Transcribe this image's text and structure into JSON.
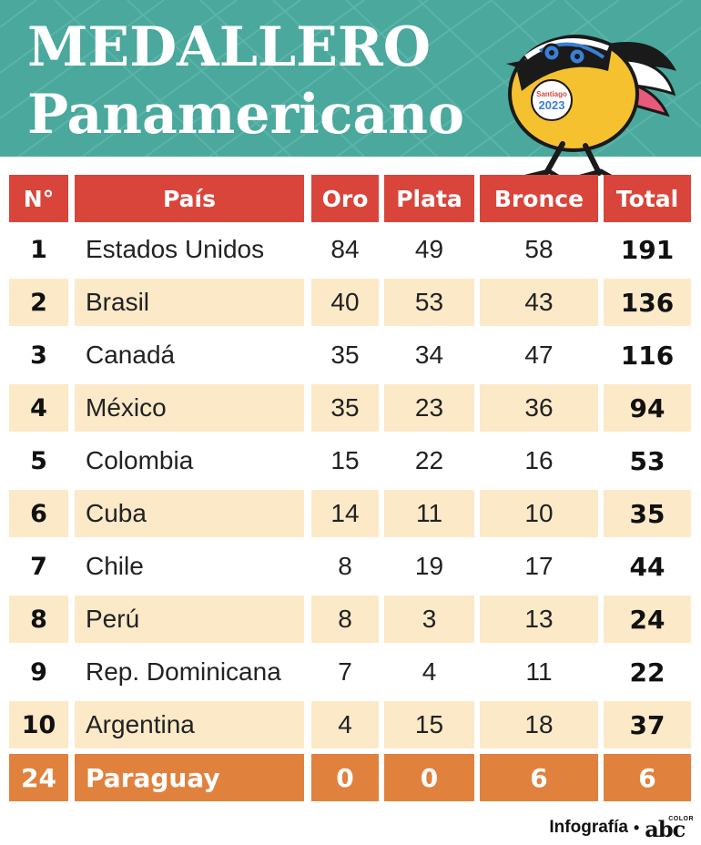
{
  "title_line1": "MEDALLERO",
  "title_line2": "Panamericano",
  "mascot": {
    "badge_city": "Santiago",
    "badge_year": "2023"
  },
  "columns": [
    "N°",
    "País",
    "Oro",
    "Plata",
    "Bronce",
    "Total"
  ],
  "rows": [
    {
      "rank": "1",
      "country": "Estados Unidos",
      "gold": "84",
      "silver": "49",
      "bronze": "58",
      "total": "191"
    },
    {
      "rank": "2",
      "country": "Brasil",
      "gold": "40",
      "silver": "53",
      "bronze": "43",
      "total": "136"
    },
    {
      "rank": "3",
      "country": "Canadá",
      "gold": "35",
      "silver": "34",
      "bronze": "47",
      "total": "116"
    },
    {
      "rank": "4",
      "country": "México",
      "gold": "35",
      "silver": "23",
      "bronze": "36",
      "total": "94"
    },
    {
      "rank": "5",
      "country": "Colombia",
      "gold": "15",
      "silver": "22",
      "bronze": "16",
      "total": "53"
    },
    {
      "rank": "6",
      "country": "Cuba",
      "gold": "14",
      "silver": "11",
      "bronze": "10",
      "total": "35"
    },
    {
      "rank": "7",
      "country": "Chile",
      "gold": "8",
      "silver": "19",
      "bronze": "17",
      "total": "44"
    },
    {
      "rank": "8",
      "country": "Perú",
      "gold": "8",
      "silver": "3",
      "bronze": "13",
      "total": "24"
    },
    {
      "rank": "9",
      "country": "Rep. Dominicana",
      "gold": "7",
      "silver": "4",
      "bronze": "11",
      "total": "22"
    },
    {
      "rank": "10",
      "country": "Argentina",
      "gold": "4",
      "silver": "15",
      "bronze": "18",
      "total": "37"
    },
    {
      "rank": "24",
      "country": "Paraguay",
      "gold": "0",
      "silver": "0",
      "bronze": "6",
      "total": "6"
    }
  ],
  "credit": {
    "label": "Infografía",
    "separator": "•",
    "logo": "abc",
    "logo_small": "COLOR"
  },
  "colors": {
    "header_bg": "#4aa89d",
    "column_header": "#d9453b",
    "stripe": "#fbe9c8",
    "highlight_row": "#e1813e"
  }
}
